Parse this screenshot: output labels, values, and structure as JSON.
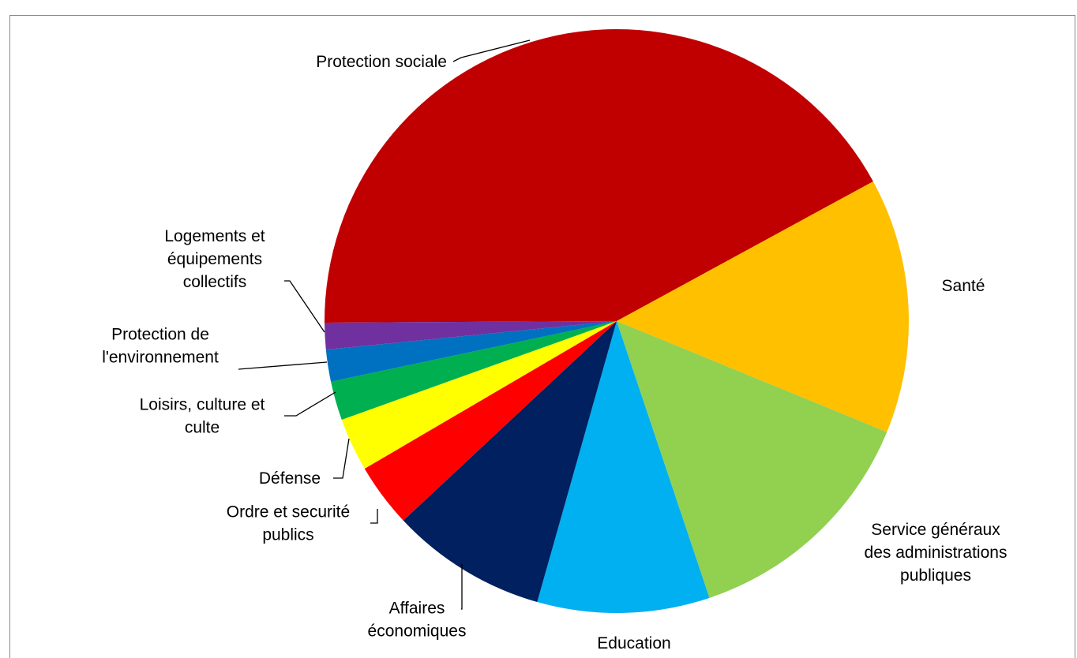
{
  "chart_data": {
    "type": "pie",
    "title": "",
    "slices": [
      {
        "label": "Protection sociale",
        "value": 42.9,
        "color": "#C00000"
      },
      {
        "label": "Santé",
        "value": 14.4,
        "color": "#FFC000"
      },
      {
        "label": "Service généraux des administrations publiques",
        "value": 13.9,
        "color": "#92D050"
      },
      {
        "label": "Education",
        "value": 9.7,
        "color": "#00B0F0"
      },
      {
        "label": "Affaires économiques",
        "value": 8.8,
        "color": "#002060"
      },
      {
        "label": "Ordre et securité publics",
        "value": 3.6,
        "color": "#FF0000"
      },
      {
        "label": "Défense",
        "value": 3.0,
        "color": "#FFFF00"
      },
      {
        "label": "Loisirs, culture et culte",
        "value": 2.2,
        "color": "#00B050"
      },
      {
        "label": "Protection de l'environnement",
        "value": 1.8,
        "color": "#0070C0"
      },
      {
        "label": "Logements et équipements collectifs",
        "value": 1.5,
        "color": "#7030A0"
      }
    ]
  }
}
